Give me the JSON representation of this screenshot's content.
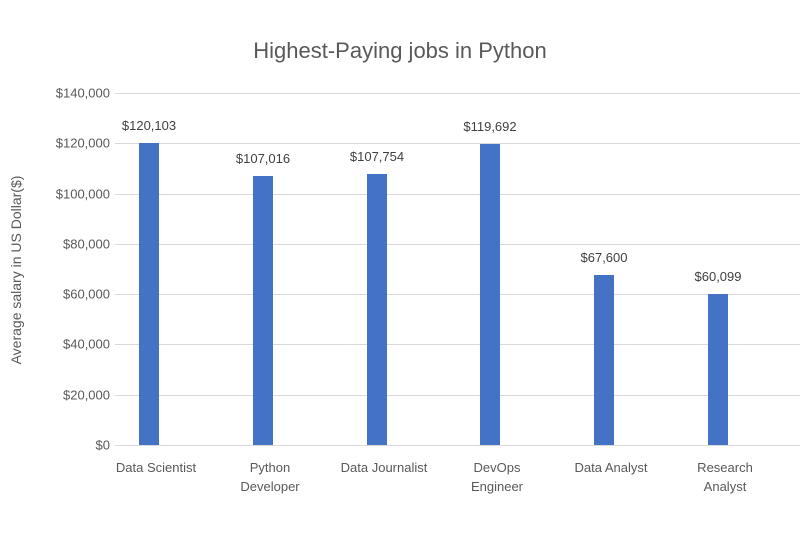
{
  "chart_data": {
    "type": "bar",
    "title": "Highest-Paying jobs in Python",
    "xlabel": "",
    "ylabel": "Average salary in US Dollar($)",
    "categories": [
      "Data Scientist",
      "Python Developer",
      "Data Journalist",
      "DevOps Engineer",
      "Data Analyst",
      "Research Analyst"
    ],
    "values": [
      120103,
      107016,
      107754,
      119692,
      67600,
      60099
    ],
    "data_labels": [
      "$120,103",
      "$107,016",
      "$107,754",
      "$119,692",
      "$67,600",
      "$60,099"
    ],
    "ylim": [
      0,
      140000
    ],
    "yticks": [
      0,
      20000,
      40000,
      60000,
      80000,
      100000,
      120000,
      140000
    ],
    "ytick_labels": [
      "$0",
      "$20,000",
      "$40,000",
      "$60,000",
      "$80,000",
      "$100,000",
      "$120,000",
      "$140,000"
    ],
    "grid": true,
    "legend": null,
    "bar_color": "#4472c4"
  },
  "labels": {
    "x_display": [
      "Data Scientist",
      "Python\nDeveloper",
      "Data Journalist",
      "DevOps\nEngineer",
      "Data Analyst",
      "Research\nAnalyst"
    ]
  }
}
